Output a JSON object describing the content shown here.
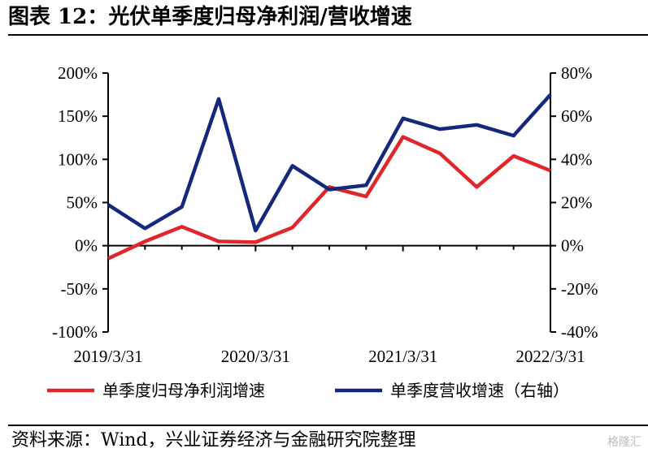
{
  "header": {
    "title": "图表 12：光伏单季度归母净利润/营收增速"
  },
  "footer": {
    "source": "资料来源：Wind，兴业证券经济与金融研究院整理",
    "watermark": "格隆汇"
  },
  "colors": {
    "net_profit": "#e1262b",
    "revenue": "#16287b"
  },
  "chart_data": {
    "type": "line",
    "title": "",
    "x": [
      "2019/3/31",
      "2019/6/30",
      "2019/9/30",
      "2019/12/31",
      "2020/3/31",
      "2020/6/30",
      "2020/9/30",
      "2020/12/31",
      "2021/3/31",
      "2021/6/30",
      "2021/9/30",
      "2021/12/31",
      "2022/3/31"
    ],
    "x_tick_labels": [
      "2019/3/31",
      "2020/3/31",
      "2021/3/31",
      "2022/3/31"
    ],
    "y_left": {
      "min": -100,
      "max": 200,
      "ticks": [
        "-100%",
        "-50%",
        "0%",
        "50%",
        "100%",
        "150%",
        "200%"
      ]
    },
    "y_right": {
      "min": -40,
      "max": 80,
      "ticks": [
        "-40%",
        "-20%",
        "0%",
        "20%",
        "40%",
        "60%",
        "80%"
      ]
    },
    "series": [
      {
        "name": "单季度归母净利润增速",
        "axis": "left",
        "color": "#e1262b",
        "values": [
          -15,
          5,
          22,
          5,
          4,
          21,
          68,
          57,
          126,
          107,
          68,
          104,
          87
        ]
      },
      {
        "name": "单季度营收增速（右轴）",
        "axis": "right",
        "color": "#16287b",
        "values": [
          19,
          8,
          18,
          68,
          7,
          37,
          26,
          28,
          59,
          54,
          56,
          51,
          70
        ]
      }
    ],
    "legend_position": "bottom",
    "grid": false
  }
}
